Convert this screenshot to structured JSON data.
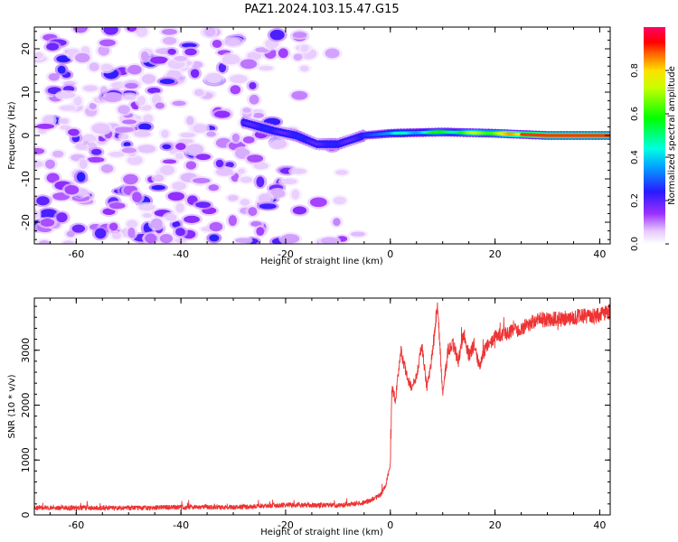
{
  "title": "PAZ1.2024.103.15.47.G15",
  "chart_data": [
    {
      "type": "heatmap",
      "xlabel": "Height of straight line (km)",
      "ylabel": "Frequency (Hz)",
      "xlim": [
        -68,
        42
      ],
      "ylim": [
        -25,
        25
      ],
      "xticks": [
        -60,
        -40,
        -20,
        0,
        20,
        40
      ],
      "yticks": [
        -20,
        -10,
        0,
        10,
        20
      ],
      "colorbar": {
        "label": "Normalized spectral amplitude",
        "range": [
          0,
          1
        ],
        "ticks": [
          0.0,
          0.2,
          0.4,
          0.6,
          0.8
        ],
        "colormap": "hsv-like (white→purple→blue→cyan→green→yellow→red→pink)"
      },
      "features": [
        {
          "description": "scattered low-amplitude noise blobs",
          "x_range": [
            -68,
            -5
          ],
          "frequency_range": [
            -25,
            25
          ],
          "amplitude": [
            0.05,
            0.25
          ]
        },
        {
          "description": "signal trace near 0 Hz drifting slightly",
          "trace": [
            [
              -28,
              3
            ],
            [
              -22,
              1
            ],
            [
              -18,
              0
            ],
            [
              -14,
              -2
            ],
            [
              -10,
              -2
            ],
            [
              -5,
              0
            ],
            [
              0,
              0.5
            ],
            [
              10,
              0.8
            ],
            [
              20,
              0.5
            ],
            [
              30,
              0
            ],
            [
              42,
              0
            ]
          ],
          "amplitude_trend": "rises from ~0.2 at -28 km to ~0.9 at >25 km"
        }
      ]
    },
    {
      "type": "line",
      "xlabel": "Height of straight line (km)",
      "ylabel": "SNR (10 * v/v)",
      "xlim": [
        -68,
        42
      ],
      "ylim": [
        0,
        3950
      ],
      "xticks": [
        -60,
        -40,
        -20,
        0,
        20,
        40
      ],
      "yticks": [
        0,
        1000,
        2000,
        3000
      ],
      "color": "#ee3333",
      "x": [
        -68,
        -60,
        -50,
        -40,
        -30,
        -20,
        -10,
        -5,
        -2,
        -1,
        0,
        0.3,
        1,
        2,
        3,
        4,
        5,
        6,
        7,
        8,
        9,
        10,
        11,
        12,
        13,
        14,
        15,
        16,
        17,
        18,
        20,
        22,
        25,
        28,
        30,
        35,
        40,
        42
      ],
      "y": [
        130,
        130,
        125,
        140,
        140,
        180,
        170,
        220,
        350,
        500,
        900,
        2300,
        2100,
        3000,
        2600,
        2300,
        2500,
        3100,
        2300,
        2900,
        3850,
        2200,
        3000,
        3100,
        2800,
        3300,
        2900,
        3100,
        2700,
        3000,
        3250,
        3300,
        3400,
        3550,
        3550,
        3600,
        3650,
        3700
      ]
    }
  ]
}
